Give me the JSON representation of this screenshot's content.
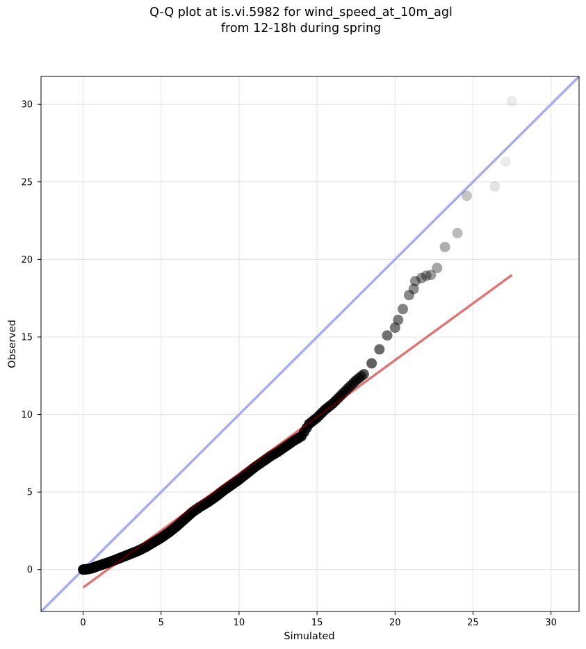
{
  "chart_data": {
    "type": "scatter",
    "title_line1": "Q-Q plot at is.vi.5982 for wind_speed_at_10m_agl",
    "title_line2": "from 12-18h during spring",
    "xlabel": "Simulated",
    "ylabel": "Observed",
    "xlim": [
      -2.7,
      31.8
    ],
    "ylim": [
      -2.7,
      31.8
    ],
    "xticks": [
      0,
      5,
      10,
      15,
      20,
      25,
      30
    ],
    "yticks": [
      0,
      5,
      10,
      15,
      20,
      25,
      30
    ],
    "grid": true,
    "identity_line": {
      "x": [
        -2.7,
        31.8
      ],
      "y": [
        -2.7,
        31.8
      ],
      "color": "#a7abf0"
    },
    "fit_line": {
      "x": [
        0,
        27.5
      ],
      "y": [
        -1.15,
        19.0
      ],
      "color": "#f4a9a9"
    },
    "point_color": "#000000",
    "points": [
      [
        0,
        0
      ],
      [
        0.2,
        0.02
      ],
      [
        0.4,
        0.05
      ],
      [
        0.6,
        0.1
      ],
      [
        0.8,
        0.18
      ],
      [
        1.0,
        0.25
      ],
      [
        1.3,
        0.35
      ],
      [
        1.6,
        0.45
      ],
      [
        2.0,
        0.6
      ],
      [
        2.5,
        0.8
      ],
      [
        3.0,
        1.0
      ],
      [
        3.5,
        1.2
      ],
      [
        4.0,
        1.45
      ],
      [
        4.5,
        1.75
      ],
      [
        5.0,
        2.05
      ],
      [
        5.5,
        2.4
      ],
      [
        6.0,
        2.8
      ],
      [
        6.5,
        3.25
      ],
      [
        7.0,
        3.7
      ],
      [
        7.5,
        4.05
      ],
      [
        8.0,
        4.35
      ],
      [
        8.5,
        4.7
      ],
      [
        9.0,
        5.1
      ],
      [
        9.5,
        5.45
      ],
      [
        10.0,
        5.8
      ],
      [
        10.5,
        6.2
      ],
      [
        11.0,
        6.6
      ],
      [
        11.5,
        6.95
      ],
      [
        12.0,
        7.3
      ],
      [
        12.5,
        7.6
      ],
      [
        13.0,
        7.95
      ],
      [
        13.5,
        8.3
      ],
      [
        14.0,
        8.6
      ],
      [
        14.5,
        9.4
      ],
      [
        15.0,
        9.8
      ],
      [
        15.5,
        10.3
      ],
      [
        16.0,
        10.7
      ],
      [
        16.5,
        11.2
      ],
      [
        17.0,
        11.7
      ],
      [
        17.5,
        12.2
      ],
      [
        18.0,
        12.6
      ],
      [
        18.5,
        13.3
      ],
      [
        19.0,
        14.2
      ],
      [
        19.5,
        15.1
      ],
      [
        20.0,
        15.6
      ],
      [
        20.2,
        16.1
      ],
      [
        20.5,
        16.8
      ],
      [
        20.9,
        17.7
      ],
      [
        21.2,
        18.1
      ],
      [
        21.3,
        18.6
      ],
      [
        21.7,
        18.8
      ],
      [
        22.0,
        18.95
      ],
      [
        22.3,
        19.0
      ],
      [
        22.7,
        19.45
      ],
      [
        23.2,
        20.8
      ],
      [
        24.0,
        21.7
      ],
      [
        24.6,
        24.1
      ],
      [
        26.4,
        24.7
      ],
      [
        27.1,
        26.3
      ],
      [
        27.5,
        30.2
      ]
    ]
  }
}
